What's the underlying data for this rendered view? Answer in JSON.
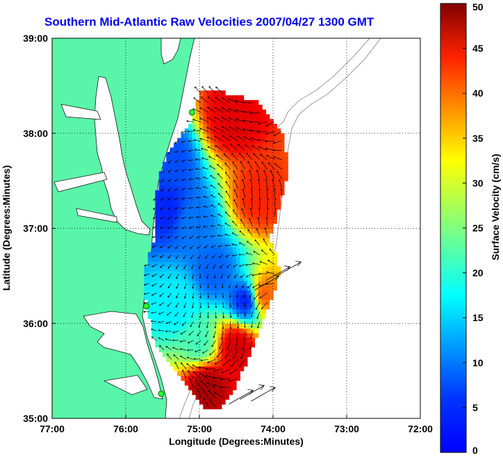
{
  "chart_data": {
    "type": "heatmap",
    "title": "Southern Mid-Atlantic Raw Velocities 2007/04/27 1300 GMT",
    "xlabel": "Longitude (Degrees:Minutes)",
    "ylabel": "Latitude (Degrees:Minutes)",
    "xlim": [
      -77,
      -72
    ],
    "ylim": [
      35,
      39
    ],
    "xticks": [
      {
        "value": -77,
        "label": "77:00"
      },
      {
        "value": -76,
        "label": "76:00"
      },
      {
        "value": -75,
        "label": "75:00"
      },
      {
        "value": -74,
        "label": "74:00"
      },
      {
        "value": -73,
        "label": "73:00"
      },
      {
        "value": -72,
        "label": "72:00"
      }
    ],
    "yticks": [
      {
        "value": 35,
        "label": "35:00"
      },
      {
        "value": 36,
        "label": "36:00"
      },
      {
        "value": 37,
        "label": "37:00"
      },
      {
        "value": 38,
        "label": "38:00"
      },
      {
        "value": 39,
        "label": "39:00"
      }
    ],
    "grid": "dotted",
    "colorbar": {
      "label": "Surface Velocity (cm/s)",
      "range": [
        0,
        50
      ],
      "ticks": [
        "0",
        "5",
        "10",
        "15",
        "20",
        "25",
        "30",
        "35",
        "40",
        "45",
        "50"
      ],
      "colormap": "jet"
    },
    "speed_features": [
      {
        "lon": -74.55,
        "lat": 38.15,
        "speed": 45
      },
      {
        "lon": -74.2,
        "lat": 37.33,
        "speed": 42
      },
      {
        "lon": -74.5,
        "lat": 35.75,
        "speed": 46
      },
      {
        "lon": -74.9,
        "lat": 35.35,
        "speed": 48
      },
      {
        "lon": -74.15,
        "lat": 36.3,
        "speed": 40
      },
      {
        "lon": -75.4,
        "lat": 37.7,
        "speed": 10
      },
      {
        "lon": -75.45,
        "lat": 37.2,
        "speed": 8
      },
      {
        "lon": -74.35,
        "lat": 36.25,
        "speed": 7
      },
      {
        "lon": -74.8,
        "lat": 36.55,
        "speed": 11
      },
      {
        "lon": -75.1,
        "lat": 37.05,
        "speed": 12
      },
      {
        "lon": -75.3,
        "lat": 36.2,
        "speed": 18
      },
      {
        "lon": -75.0,
        "lat": 35.8,
        "speed": 22
      }
    ],
    "stations": [
      {
        "lon": -75.1,
        "lat": 38.22
      },
      {
        "lon": -75.72,
        "lat": 36.18
      },
      {
        "lon": -75.52,
        "lat": 35.26
      }
    ]
  },
  "colors": {
    "land": "#59f5a8",
    "title": "#0000ee",
    "bathymetry": "#9a9a9a"
  }
}
